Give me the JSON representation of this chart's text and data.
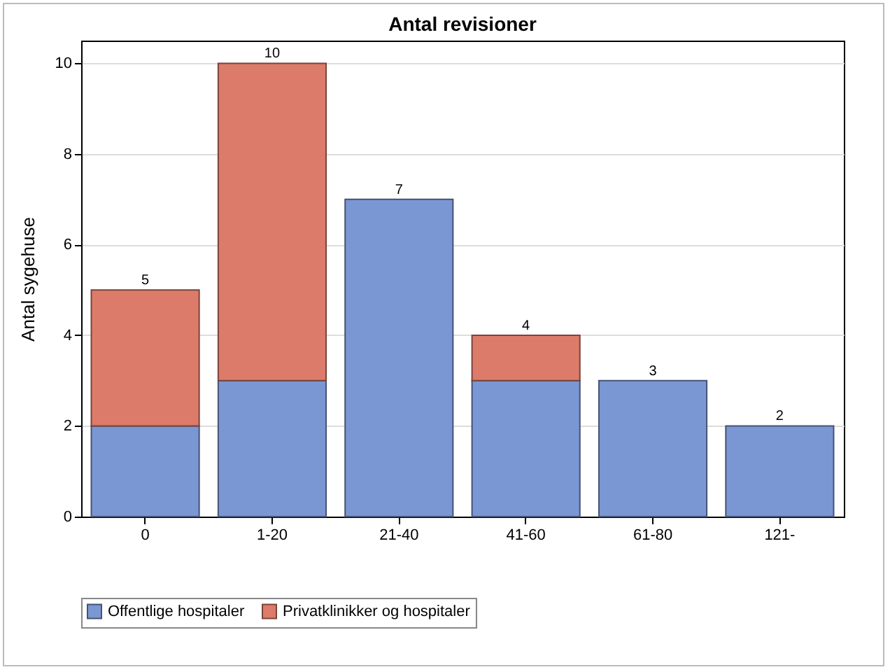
{
  "chart_data": {
    "type": "bar",
    "title": "Antal revisioner",
    "ylabel": "Antal sygehuse",
    "categories": [
      "0",
      "1-20",
      "21-40",
      "41-60",
      "61-80",
      "121-"
    ],
    "series": [
      {
        "name": "Offentlige hospitaler",
        "color": "#7b97d3",
        "values": [
          2,
          3,
          7,
          3,
          3,
          2
        ]
      },
      {
        "name": "Privatklinikker og hospitaler",
        "color": "#dd7b6a",
        "values": [
          3,
          7,
          null,
          1,
          null,
          null
        ]
      }
    ],
    "stacked": true,
    "totals": [
      "5",
      "10",
      "7",
      "4",
      "3",
      "2"
    ],
    "ylim": [
      0,
      10.5
    ],
    "yticks": [
      0,
      2,
      4,
      6,
      8,
      10
    ],
    "grid": "y",
    "legend": "bottom"
  }
}
